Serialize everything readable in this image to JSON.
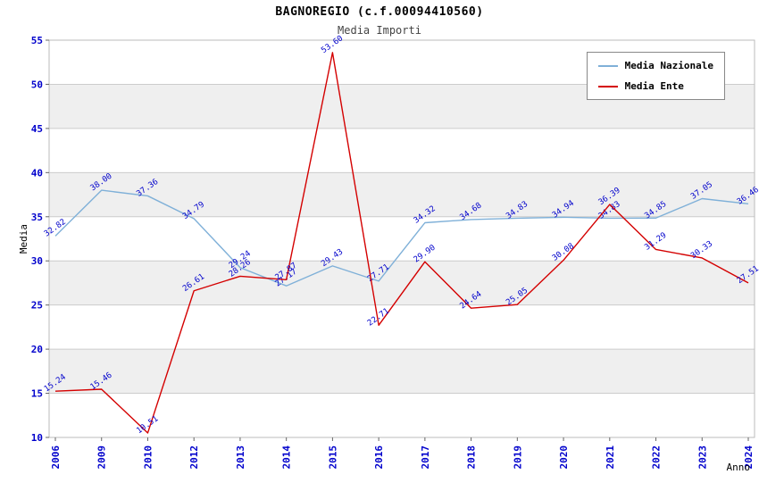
{
  "title": "BAGNOREGIO (c.f.00094410560)",
  "subtitle": "Media Importi",
  "chart_data": {
    "type": "line",
    "x": [
      "2006",
      "2009",
      "2010",
      "2012",
      "2013",
      "2014",
      "2015",
      "2016",
      "2017",
      "2018",
      "2019",
      "2020",
      "2021",
      "2022",
      "2023",
      "2024"
    ],
    "series": [
      {
        "name": "Media Nazionale",
        "color": "#7fb0d8",
        "values": [
          32.82,
          38.0,
          37.36,
          34.79,
          29.24,
          27.17,
          29.43,
          27.71,
          34.32,
          34.68,
          34.83,
          34.94,
          34.83,
          34.85,
          37.05,
          36.46
        ]
      },
      {
        "name": "Media Ente",
        "color": "#d40000",
        "values": [
          15.24,
          15.46,
          10.51,
          26.61,
          28.26,
          27.87,
          53.6,
          22.71,
          29.9,
          24.64,
          25.05,
          30.08,
          36.39,
          31.29,
          30.33,
          27.51
        ]
      }
    ],
    "xlabel": "Anno",
    "ylabel": "Media",
    "ylim": [
      10,
      55
    ],
    "yticks": [
      10,
      15,
      20,
      25,
      30,
      35,
      40,
      45,
      50,
      55
    ],
    "band_color": "#efefef",
    "grid_color": "#cccccc",
    "tick_label_color": "#0000cc",
    "point_label_color": "#0000cc",
    "legend_position": "top-right",
    "grid": true
  }
}
